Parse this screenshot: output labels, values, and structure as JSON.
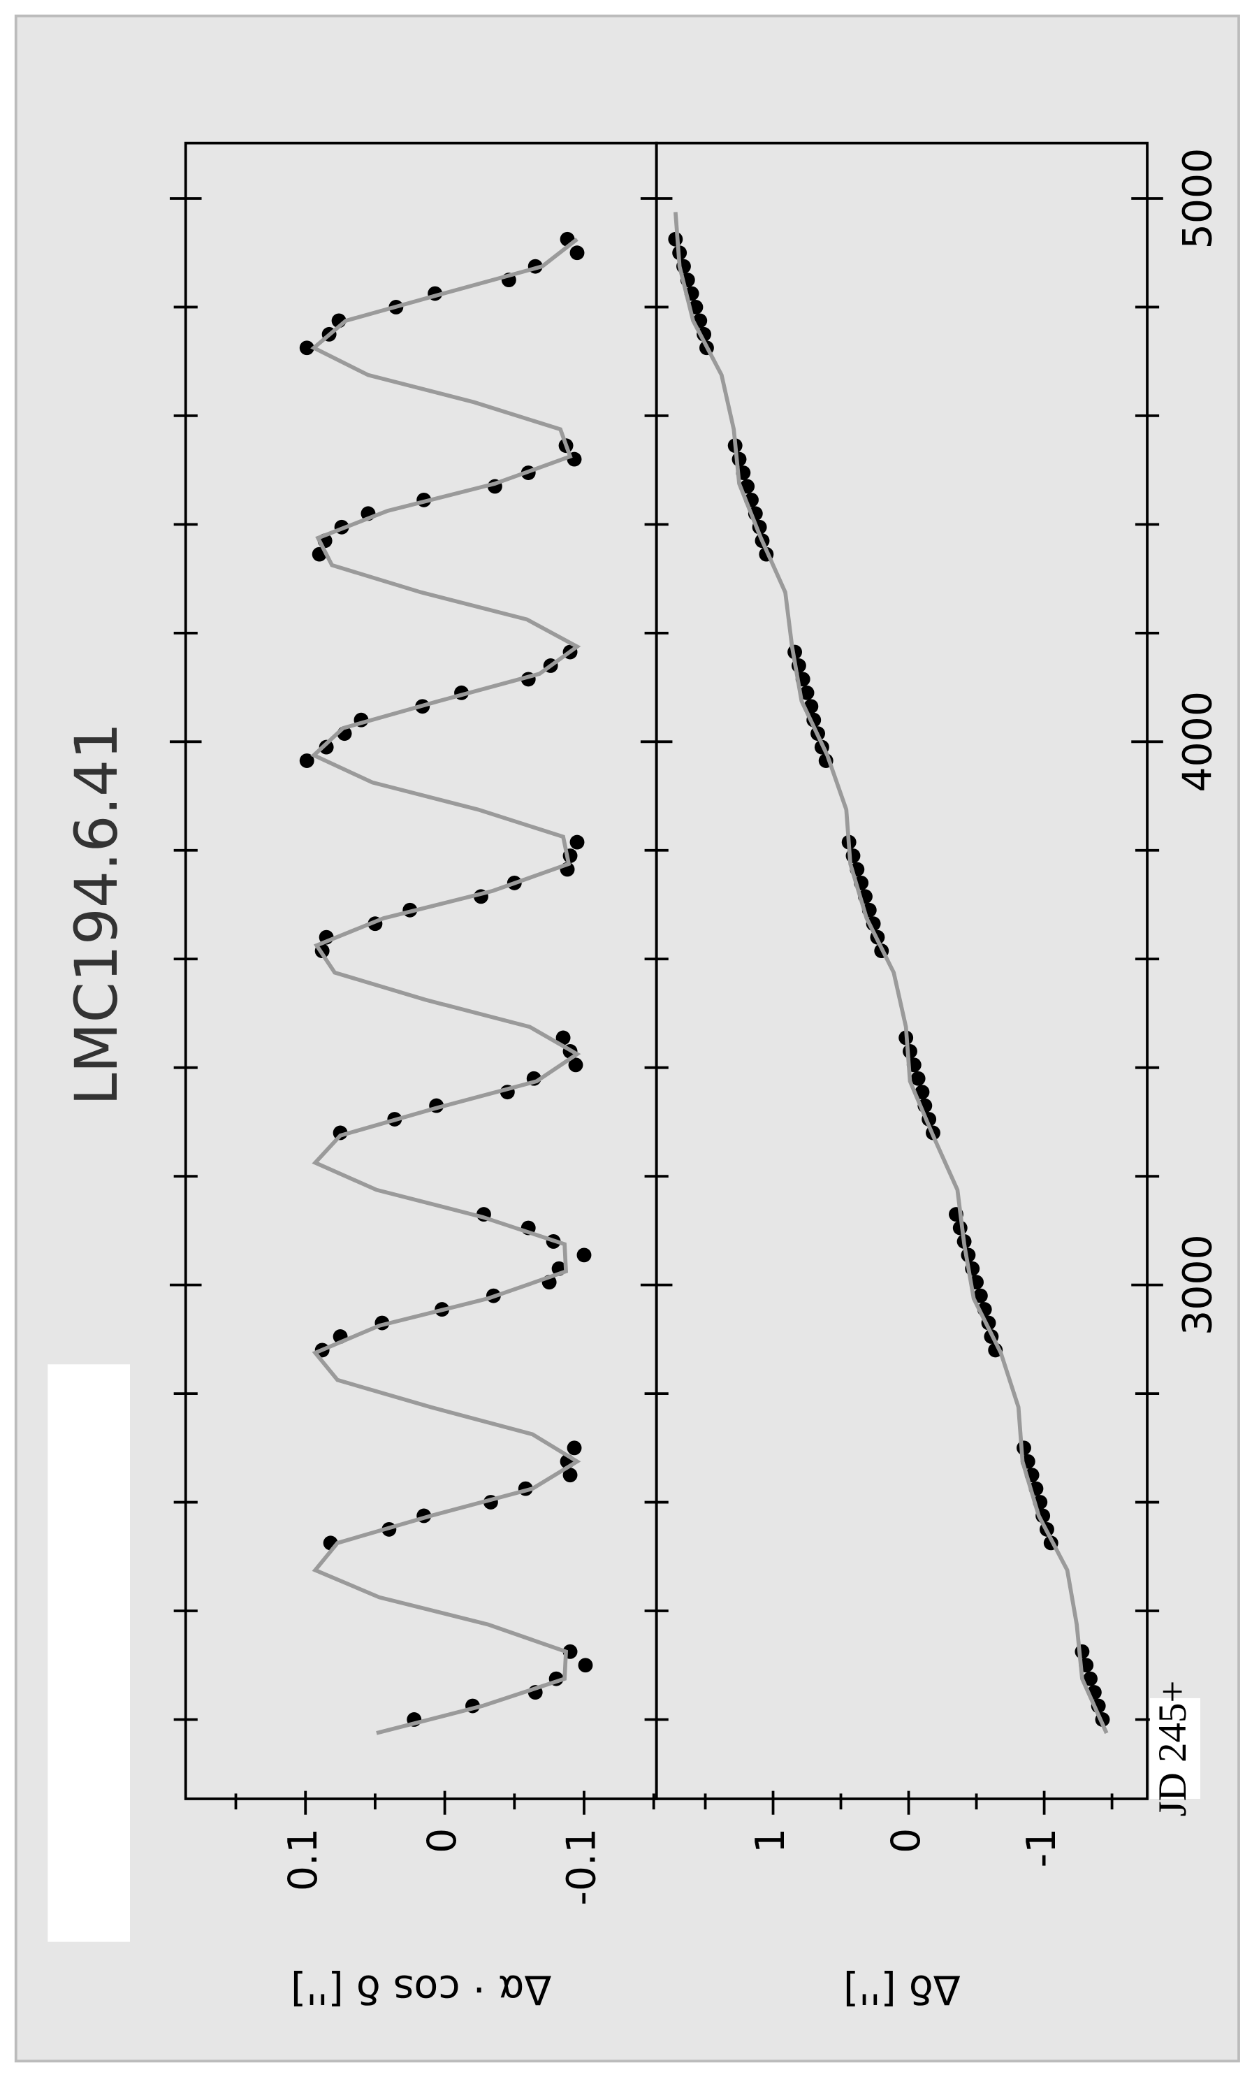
{
  "chart_data": [
    {
      "type": "scatter",
      "title": "LMC194.6.41",
      "ylabel": "Δα · cos δ  ['']",
      "xlim": [
        2054,
        5102
      ],
      "ylim": [
        -0.152,
        0.186
      ],
      "yticks": [
        -0.1,
        0,
        0.1
      ],
      "yminor": [
        -0.15,
        -0.05,
        0.05,
        0.15
      ],
      "series": [
        {
          "color": "#000000",
          "x": [
            2200,
            2225,
            2250,
            2275,
            2300,
            2325,
            2525,
            2550,
            2575,
            2600,
            2625,
            2650,
            2675,
            2700,
            2880,
            2905,
            2930,
            2955,
            2980,
            3005,
            3030,
            3055,
            3080,
            3105,
            3130,
            3280,
            3305,
            3330,
            3355,
            3380,
            3405,
            3430,
            3455,
            3615,
            3640,
            3665,
            3690,
            3715,
            3740,
            3765,
            3790,
            3815,
            3965,
            3990,
            4015,
            4040,
            4065,
            4090,
            4115,
            4140,
            4165,
            4345,
            4370,
            4395,
            4420,
            4445,
            4470,
            4495,
            4520,
            4545,
            4725,
            4750,
            4775,
            4800,
            4825,
            4850,
            4875,
            4900,
            4925
          ],
          "values": [
            0.022,
            -0.02,
            -0.065,
            -0.08,
            -0.101,
            -0.09,
            0.082,
            0.04,
            0.015,
            -0.033,
            -0.058,
            -0.09,
            -0.088,
            -0.093,
            0.088,
            0.075,
            0.045,
            0.002,
            -0.035,
            -0.075,
            -0.082,
            -0.1,
            -0.078,
            -0.06,
            -0.028,
            0.075,
            0.036,
            0.006,
            -0.045,
            -0.064,
            -0.094,
            -0.09,
            -0.085,
            0.088,
            0.085,
            0.05,
            0.025,
            -0.026,
            -0.05,
            -0.088,
            -0.09,
            -0.095,
            0.099,
            0.085,
            0.072,
            0.06,
            0.016,
            -0.012,
            -0.06,
            -0.076,
            -0.09,
            0.09,
            0.086,
            0.074,
            0.055,
            0.015,
            -0.036,
            -0.06,
            -0.093,
            -0.087,
            0.099,
            0.083,
            0.076,
            0.035,
            0.007,
            -0.046,
            -0.065,
            -0.095,
            -0.088
          ]
        },
        {
          "type": "line",
          "color": "#9a9a9a",
          "x": [
            2175,
            2225,
            2275,
            2325,
            2375,
            2425,
            2475,
            2525,
            2575,
            2625,
            2675,
            2725,
            2775,
            2825,
            2875,
            2925,
            2975,
            3025,
            3075,
            3125,
            3175,
            3225,
            3275,
            3325,
            3375,
            3425,
            3475,
            3525,
            3575,
            3625,
            3675,
            3725,
            3775,
            3825,
            3875,
            3925,
            3975,
            4025,
            4075,
            4125,
            4175,
            4225,
            4275,
            4325,
            4375,
            4425,
            4475,
            4525,
            4575,
            4625,
            4675,
            4725,
            4775,
            4825,
            4875,
            4925
          ],
          "values": [
            0.049,
            -0.027,
            -0.086,
            -0.087,
            -0.031,
            0.047,
            0.093,
            0.077,
            0.01,
            -0.063,
            -0.095,
            -0.063,
            0.01,
            0.077,
            0.093,
            0.047,
            -0.031,
            -0.087,
            -0.086,
            -0.027,
            0.049,
            0.093,
            0.075,
            0.007,
            -0.066,
            -0.095,
            -0.061,
            0.014,
            0.079,
            0.092,
            0.044,
            -0.034,
            -0.089,
            -0.085,
            -0.024,
            0.052,
            0.094,
            0.073,
            0.004,
            -0.068,
            -0.095,
            -0.059,
            0.017,
            0.081,
            0.091,
            0.041,
            -0.036,
            -0.09,
            -0.083,
            -0.021,
            0.055,
            0.094,
            0.071,
            0.001,
            -0.07,
            -0.095
          ]
        }
      ]
    },
    {
      "type": "scatter",
      "ylabel": "Δδ  ['']",
      "xlabel": "JD 245+",
      "xlim": [
        2054,
        5102
      ],
      "xticks": [
        3000,
        4000,
        5000
      ],
      "xminor": [
        2200,
        2400,
        2600,
        2800,
        3200,
        3400,
        3600,
        3800,
        4200,
        4400,
        4600,
        4800
      ],
      "ylim": [
        -1.76,
        1.86
      ],
      "yticks": [
        -1,
        0,
        1
      ],
      "yminor": [
        -1.5,
        -0.5,
        0.5,
        1.5
      ],
      "series": [
        {
          "color": "#000000",
          "x": [
            2200,
            2225,
            2250,
            2275,
            2300,
            2325,
            2525,
            2550,
            2575,
            2600,
            2625,
            2650,
            2675,
            2700,
            2880,
            2905,
            2930,
            2955,
            2980,
            3005,
            3030,
            3055,
            3080,
            3105,
            3130,
            3280,
            3305,
            3330,
            3355,
            3380,
            3405,
            3430,
            3455,
            3615,
            3640,
            3665,
            3690,
            3715,
            3740,
            3765,
            3790,
            3815,
            3965,
            3990,
            4015,
            4040,
            4065,
            4090,
            4115,
            4140,
            4165,
            4345,
            4370,
            4395,
            4420,
            4445,
            4470,
            4495,
            4520,
            4545,
            4725,
            4750,
            4775,
            4800,
            4825,
            4850,
            4875,
            4900,
            4925
          ],
          "values": [
            -1.43,
            -1.4,
            -1.37,
            -1.34,
            -1.31,
            -1.28,
            -1.05,
            -1.02,
            -0.99,
            -0.97,
            -0.94,
            -0.91,
            -0.88,
            -0.85,
            -0.64,
            -0.61,
            -0.59,
            -0.56,
            -0.53,
            -0.5,
            -0.47,
            -0.44,
            -0.41,
            -0.38,
            -0.35,
            -0.18,
            -0.15,
            -0.12,
            -0.1,
            -0.07,
            -0.04,
            -0.01,
            0.02,
            0.2,
            0.23,
            0.26,
            0.29,
            0.32,
            0.35,
            0.38,
            0.41,
            0.44,
            0.61,
            0.64,
            0.67,
            0.7,
            0.72,
            0.75,
            0.78,
            0.81,
            0.84,
            1.05,
            1.08,
            1.1,
            1.13,
            1.16,
            1.19,
            1.22,
            1.25,
            1.28,
            1.49,
            1.51,
            1.54,
            1.57,
            1.6,
            1.63,
            1.66,
            1.69,
            1.72
          ]
        },
        {
          "type": "line",
          "color": "#9a9a9a",
          "x": [
            2175,
            2275,
            2375,
            2475,
            2575,
            2675,
            2775,
            2875,
            2975,
            3075,
            3175,
            3275,
            3375,
            3475,
            3575,
            3675,
            3775,
            3875,
            3975,
            4075,
            4175,
            4275,
            4375,
            4475,
            4575,
            4675,
            4775,
            4875,
            4975
          ],
          "values": [
            -1.46,
            -1.28,
            -1.24,
            -1.17,
            -0.96,
            -0.84,
            -0.81,
            -0.68,
            -0.48,
            -0.41,
            -0.36,
            -0.18,
            -0.01,
            0.02,
            0.11,
            0.31,
            0.43,
            0.46,
            0.6,
            0.79,
            0.86,
            0.91,
            1.09,
            1.25,
            1.29,
            1.38,
            1.59,
            1.69,
            1.72
          ]
        }
      ]
    }
  ]
}
